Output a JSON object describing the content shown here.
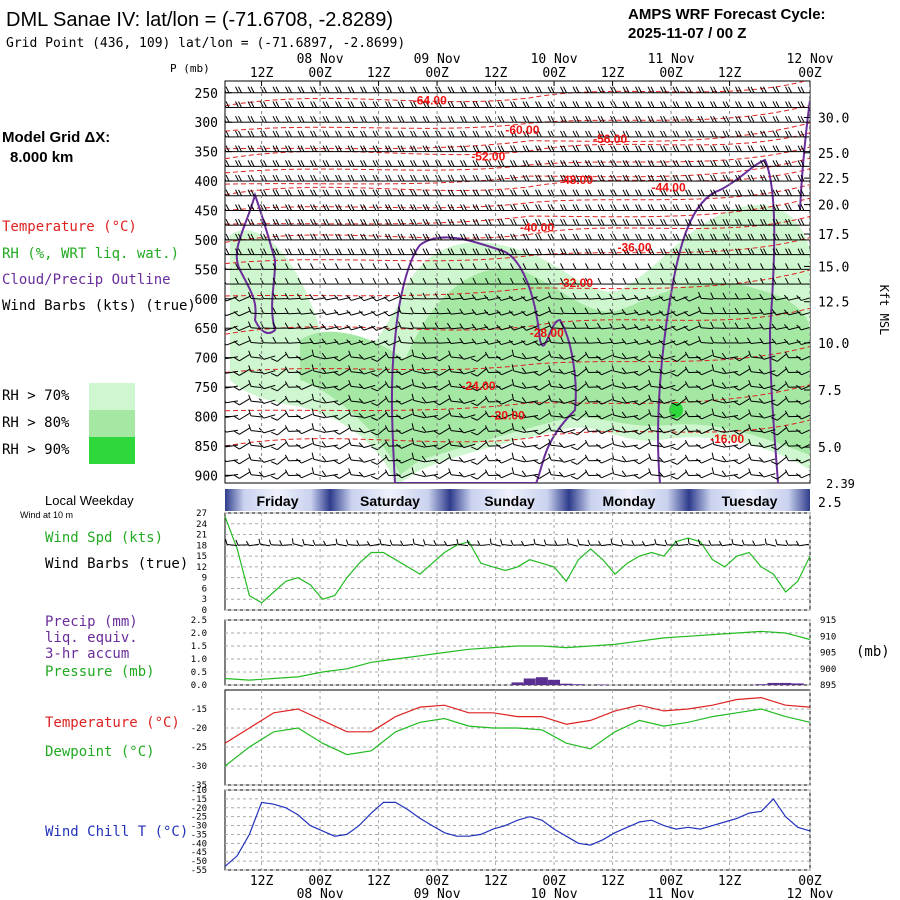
{
  "header": {
    "title": "DML Sanae IV:  lat/lon = (-71.6708, -2.8289)",
    "subtitle": "Grid Point (436, 109) lat/lon = (-71.6897, -2.8699)",
    "cycle_label": "AMPS WRF Forecast Cycle:",
    "cycle_value": "2025-11-07 / 00  Z"
  },
  "left_legend": {
    "model_grid_label": "Model Grid ΔX:",
    "model_grid_value": "8.000 km",
    "temperature": "Temperature (°C)",
    "rh": "RH (%, WRT liq. wat.)",
    "cloud": "Cloud/Precip Outline",
    "wind": "Wind Barbs (kts) (true)",
    "rh_levels": [
      "RH > 70%",
      "RH > 80%",
      "RH > 90%"
    ],
    "rh_colors": [
      "#cff7cf",
      "#a4e8a4",
      "#2fd83a"
    ]
  },
  "time_axis": {
    "hours": [
      "12Z",
      "00Z",
      "12Z",
      "00Z",
      "12Z",
      "00Z",
      "12Z",
      "00Z",
      "12Z",
      "00Z"
    ],
    "dates": [
      "08 Nov",
      "09 Nov",
      "10 Nov",
      "11 Nov",
      "12 Nov"
    ],
    "weekdays": [
      "Friday",
      "Saturday",
      "Sunday",
      "Monday",
      "Tuesday"
    ],
    "weekday_label": "Local Weekday",
    "wind_at": "Wind at 10 m"
  },
  "chart_data": [
    {
      "type": "heatmap",
      "name": "cross-section",
      "ylabel": "P (mb)",
      "y2label": "Kft MSL",
      "pressure_levels": [
        250,
        300,
        350,
        400,
        450,
        500,
        550,
        600,
        650,
        700,
        750,
        800,
        850,
        900
      ],
      "height_ticks": [
        "30.0",
        "25.0",
        "22.5",
        "20.0",
        "17.5",
        "15.0",
        "12.5",
        "10.0",
        "7.5",
        "5.0",
        "2.5"
      ],
      "height_ticks_p": [
        292,
        352,
        395,
        440,
        490,
        545,
        605,
        675,
        755,
        852,
        945
      ],
      "surface_label": "2.39",
      "temperature_labels": [
        {
          "text": "-64.00",
          "t": 16.8,
          "p": 270
        },
        {
          "text": "-60.00",
          "t": 24.4,
          "p": 320
        },
        {
          "text": "-56.00",
          "t": 31.6,
          "p": 335
        },
        {
          "text": "-52.00",
          "t": 21.6,
          "p": 365
        },
        {
          "text": "-48.00",
          "t": 28.8,
          "p": 405
        },
        {
          "text": "-44.00",
          "t": 36.4,
          "p": 418
        },
        {
          "text": "-40.00",
          "t": 25.6,
          "p": 486
        },
        {
          "text": "-36.00",
          "t": 33.6,
          "p": 520
        },
        {
          "text": "-32.00",
          "t": 28.8,
          "p": 580
        },
        {
          "text": "-28.00",
          "t": 26.4,
          "p": 665
        },
        {
          "text": "-24.00",
          "t": 20.8,
          "p": 755
        },
        {
          "text": "-20.00",
          "t": 23.2,
          "p": 805
        },
        {
          "text": "-16.00",
          "t": 41.2,
          "p": 845
        }
      ]
    },
    {
      "type": "line",
      "name": "wind-speed",
      "ylabel": "Wind Spd (kts)",
      "y2label": "Wind Barbs (true)",
      "ylim": [
        0,
        27
      ],
      "yticks": [
        0,
        3,
        6,
        9,
        12,
        15,
        18,
        21,
        24,
        27
      ],
      "color": "#22bb22",
      "x": [
        0,
        1,
        2,
        3,
        4,
        5,
        6,
        7,
        8,
        9,
        10,
        11,
        12,
        13,
        14,
        15,
        16,
        17,
        18,
        19,
        20,
        21,
        22,
        23,
        24,
        25,
        26,
        27,
        28,
        29,
        30,
        31,
        32,
        33,
        34,
        35,
        36,
        37,
        38,
        39,
        40,
        41,
        42,
        43,
        44,
        45,
        46,
        47,
        48
      ],
      "values": [
        26,
        17,
        4,
        2,
        5,
        8,
        9,
        7,
        3,
        4,
        9,
        13,
        16,
        16,
        14,
        12,
        10,
        13,
        16,
        18,
        19,
        13,
        12,
        11,
        12,
        14,
        13,
        12,
        8,
        14,
        17,
        14,
        10,
        13,
        15,
        16,
        15,
        19,
        20,
        19,
        14,
        12,
        15,
        16,
        12,
        10,
        5,
        8,
        15
      ]
    },
    {
      "type": "bar",
      "name": "precip-pressure",
      "ylabel": "Precip (mm)",
      "ylabel_extra": [
        "liq. equiv.",
        "3-hr accum"
      ],
      "y2label": "Pressure (mb)",
      "units_label": "(mb)",
      "ylim": [
        0,
        2.5
      ],
      "yticks": [
        "0.0",
        "0.5",
        "1.0",
        "1.5",
        "2.0",
        "2.5"
      ],
      "y2lim": [
        895,
        915
      ],
      "y2ticks": [
        895,
        900,
        905,
        910,
        915
      ],
      "precip_color": "#5a2d91",
      "pressure_color": "#22bb22",
      "precip_bars": [
        {
          "t": 24.0,
          "v": 0.1
        },
        {
          "t": 25.0,
          "v": 0.25
        },
        {
          "t": 26.0,
          "v": 0.3
        },
        {
          "t": 27.0,
          "v": 0.2
        },
        {
          "t": 28.0,
          "v": 0.05
        },
        {
          "t": 29.0,
          "v": 0.03
        },
        {
          "t": 31.0,
          "v": 0.02
        },
        {
          "t": 44.0,
          "v": 0.03
        },
        {
          "t": 45.0,
          "v": 0.08
        },
        {
          "t": 46.0,
          "v": 0.08
        },
        {
          "t": 47.0,
          "v": 0.06
        }
      ],
      "pressure_x": [
        0,
        2,
        4,
        6,
        8,
        10,
        12,
        14,
        16,
        18,
        20,
        22,
        24,
        26,
        28,
        30,
        32,
        34,
        36,
        38,
        40,
        42,
        44,
        46,
        48
      ],
      "pressure_values": [
        897,
        896.5,
        897,
        897.5,
        899,
        900,
        902,
        903,
        904,
        905,
        906,
        906.5,
        907,
        907,
        906.5,
        907,
        907.5,
        908.5,
        909.5,
        910,
        910.5,
        911,
        911.5,
        911,
        909
      ]
    },
    {
      "type": "line",
      "name": "temperature-dewpoint",
      "ylim": [
        -35,
        -10
      ],
      "yticks": [
        -35,
        -30,
        -25,
        -20,
        -15
      ],
      "series": [
        {
          "name": "Temperature (°C)",
          "color": "#dd2222",
          "x": [
            0,
            2,
            4,
            6,
            8,
            10,
            12,
            14,
            16,
            18,
            20,
            22,
            24,
            26,
            28,
            30,
            32,
            34,
            36,
            38,
            40,
            42,
            44,
            46,
            48
          ],
          "values": [
            -24,
            -20,
            -16,
            -15,
            -18,
            -21,
            -21,
            -17,
            -14.5,
            -14,
            -16,
            -16,
            -17,
            -17,
            -19,
            -18,
            -15.5,
            -14,
            -15.5,
            -15,
            -14,
            -12.5,
            -12,
            -14,
            -14.5
          ]
        },
        {
          "name": "Dewpoint (°C)",
          "color": "#22bb22",
          "x": [
            0,
            2,
            4,
            6,
            8,
            10,
            12,
            14,
            16,
            18,
            20,
            22,
            24,
            26,
            28,
            30,
            32,
            34,
            36,
            38,
            40,
            42,
            44,
            46,
            48
          ],
          "values": [
            -30,
            -25,
            -21,
            -20,
            -24,
            -27,
            -26,
            -21,
            -18.5,
            -17.5,
            -19.5,
            -20,
            -20,
            -20.5,
            -24,
            -25.5,
            -21,
            -18,
            -19.5,
            -18.5,
            -17,
            -16,
            -15,
            -17,
            -18.5
          ]
        }
      ]
    },
    {
      "type": "line",
      "name": "wind-chill",
      "ylabel": "Wind Chill T (°C)",
      "ylim": [
        -55,
        -10
      ],
      "yticks": [
        -55,
        -50,
        -45,
        -40,
        -35,
        -30,
        -25,
        -20,
        -15,
        -10
      ],
      "color": "#2233bb",
      "x": [
        0,
        1,
        2,
        3,
        4,
        5,
        6,
        7,
        8,
        9,
        10,
        11,
        12,
        13,
        14,
        15,
        16,
        17,
        18,
        19,
        20,
        21,
        22,
        23,
        24,
        25,
        26,
        27,
        28,
        29,
        30,
        31,
        32,
        33,
        34,
        35,
        36,
        37,
        38,
        39,
        40,
        41,
        42,
        43,
        44,
        45,
        46,
        47,
        48
      ],
      "values": [
        -53,
        -47,
        -35,
        -17,
        -18,
        -20,
        -24,
        -30,
        -33,
        -36,
        -35,
        -30,
        -23,
        -17,
        -17,
        -21,
        -26,
        -30,
        -34,
        -36,
        -36,
        -35,
        -32,
        -30,
        -27,
        -25,
        -27,
        -32,
        -36,
        -40,
        -41,
        -38,
        -34,
        -31,
        -28,
        -27,
        -30,
        -32,
        -31,
        -32,
        -30,
        -28,
        -26,
        -23,
        -22,
        -15,
        -25,
        -31,
        -33
      ]
    }
  ]
}
